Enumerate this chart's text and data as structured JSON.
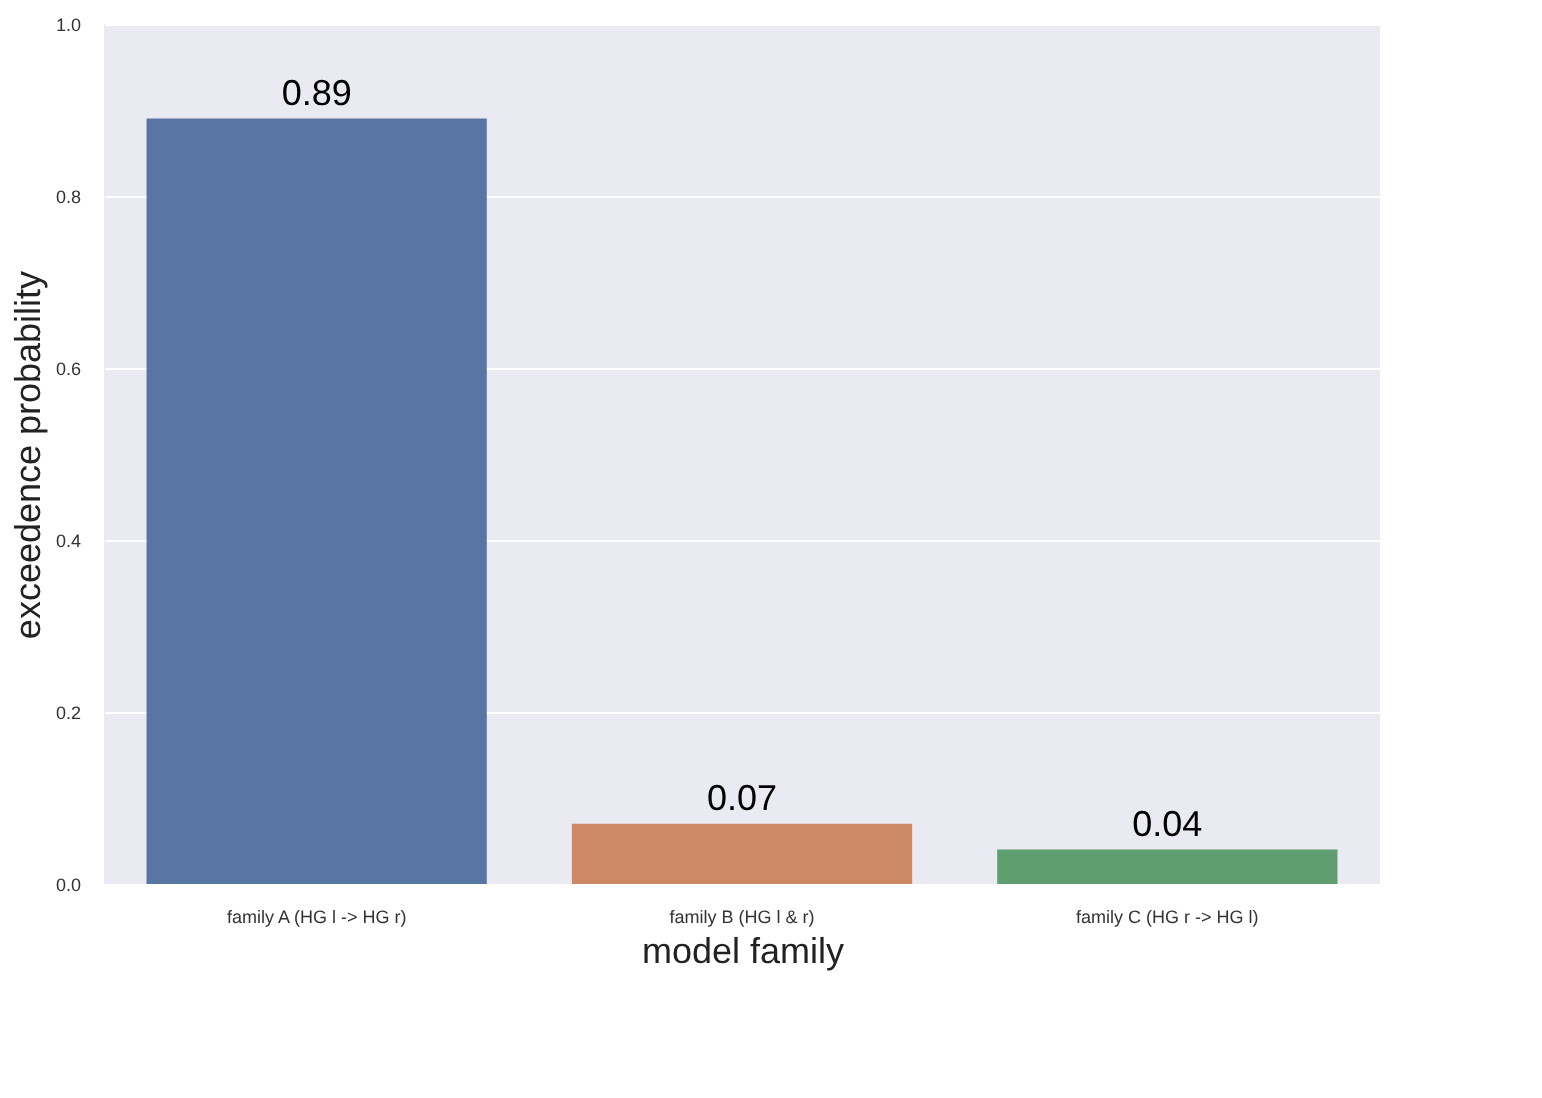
{
  "chart_data": {
    "type": "bar",
    "xlabel": "model family",
    "ylabel": "exceedence probability",
    "categories": [
      "family A (HG l -> HG r)",
      "family B (HG l & r)",
      "family C (HG r -> HG l)"
    ],
    "values": [
      0.89,
      0.07,
      0.04
    ],
    "colors": [
      "#5875a4",
      "#cc8963",
      "#5f9e6e"
    ],
    "ylim": [
      0,
      1
    ],
    "yticks": [
      {
        "value": 0,
        "label": "0.0"
      },
      0.2,
      0.4,
      0.6,
      0.8,
      {
        "value": 1,
        "label": "1.0"
      }
    ],
    "grid": "y",
    "data_labels": true
  }
}
